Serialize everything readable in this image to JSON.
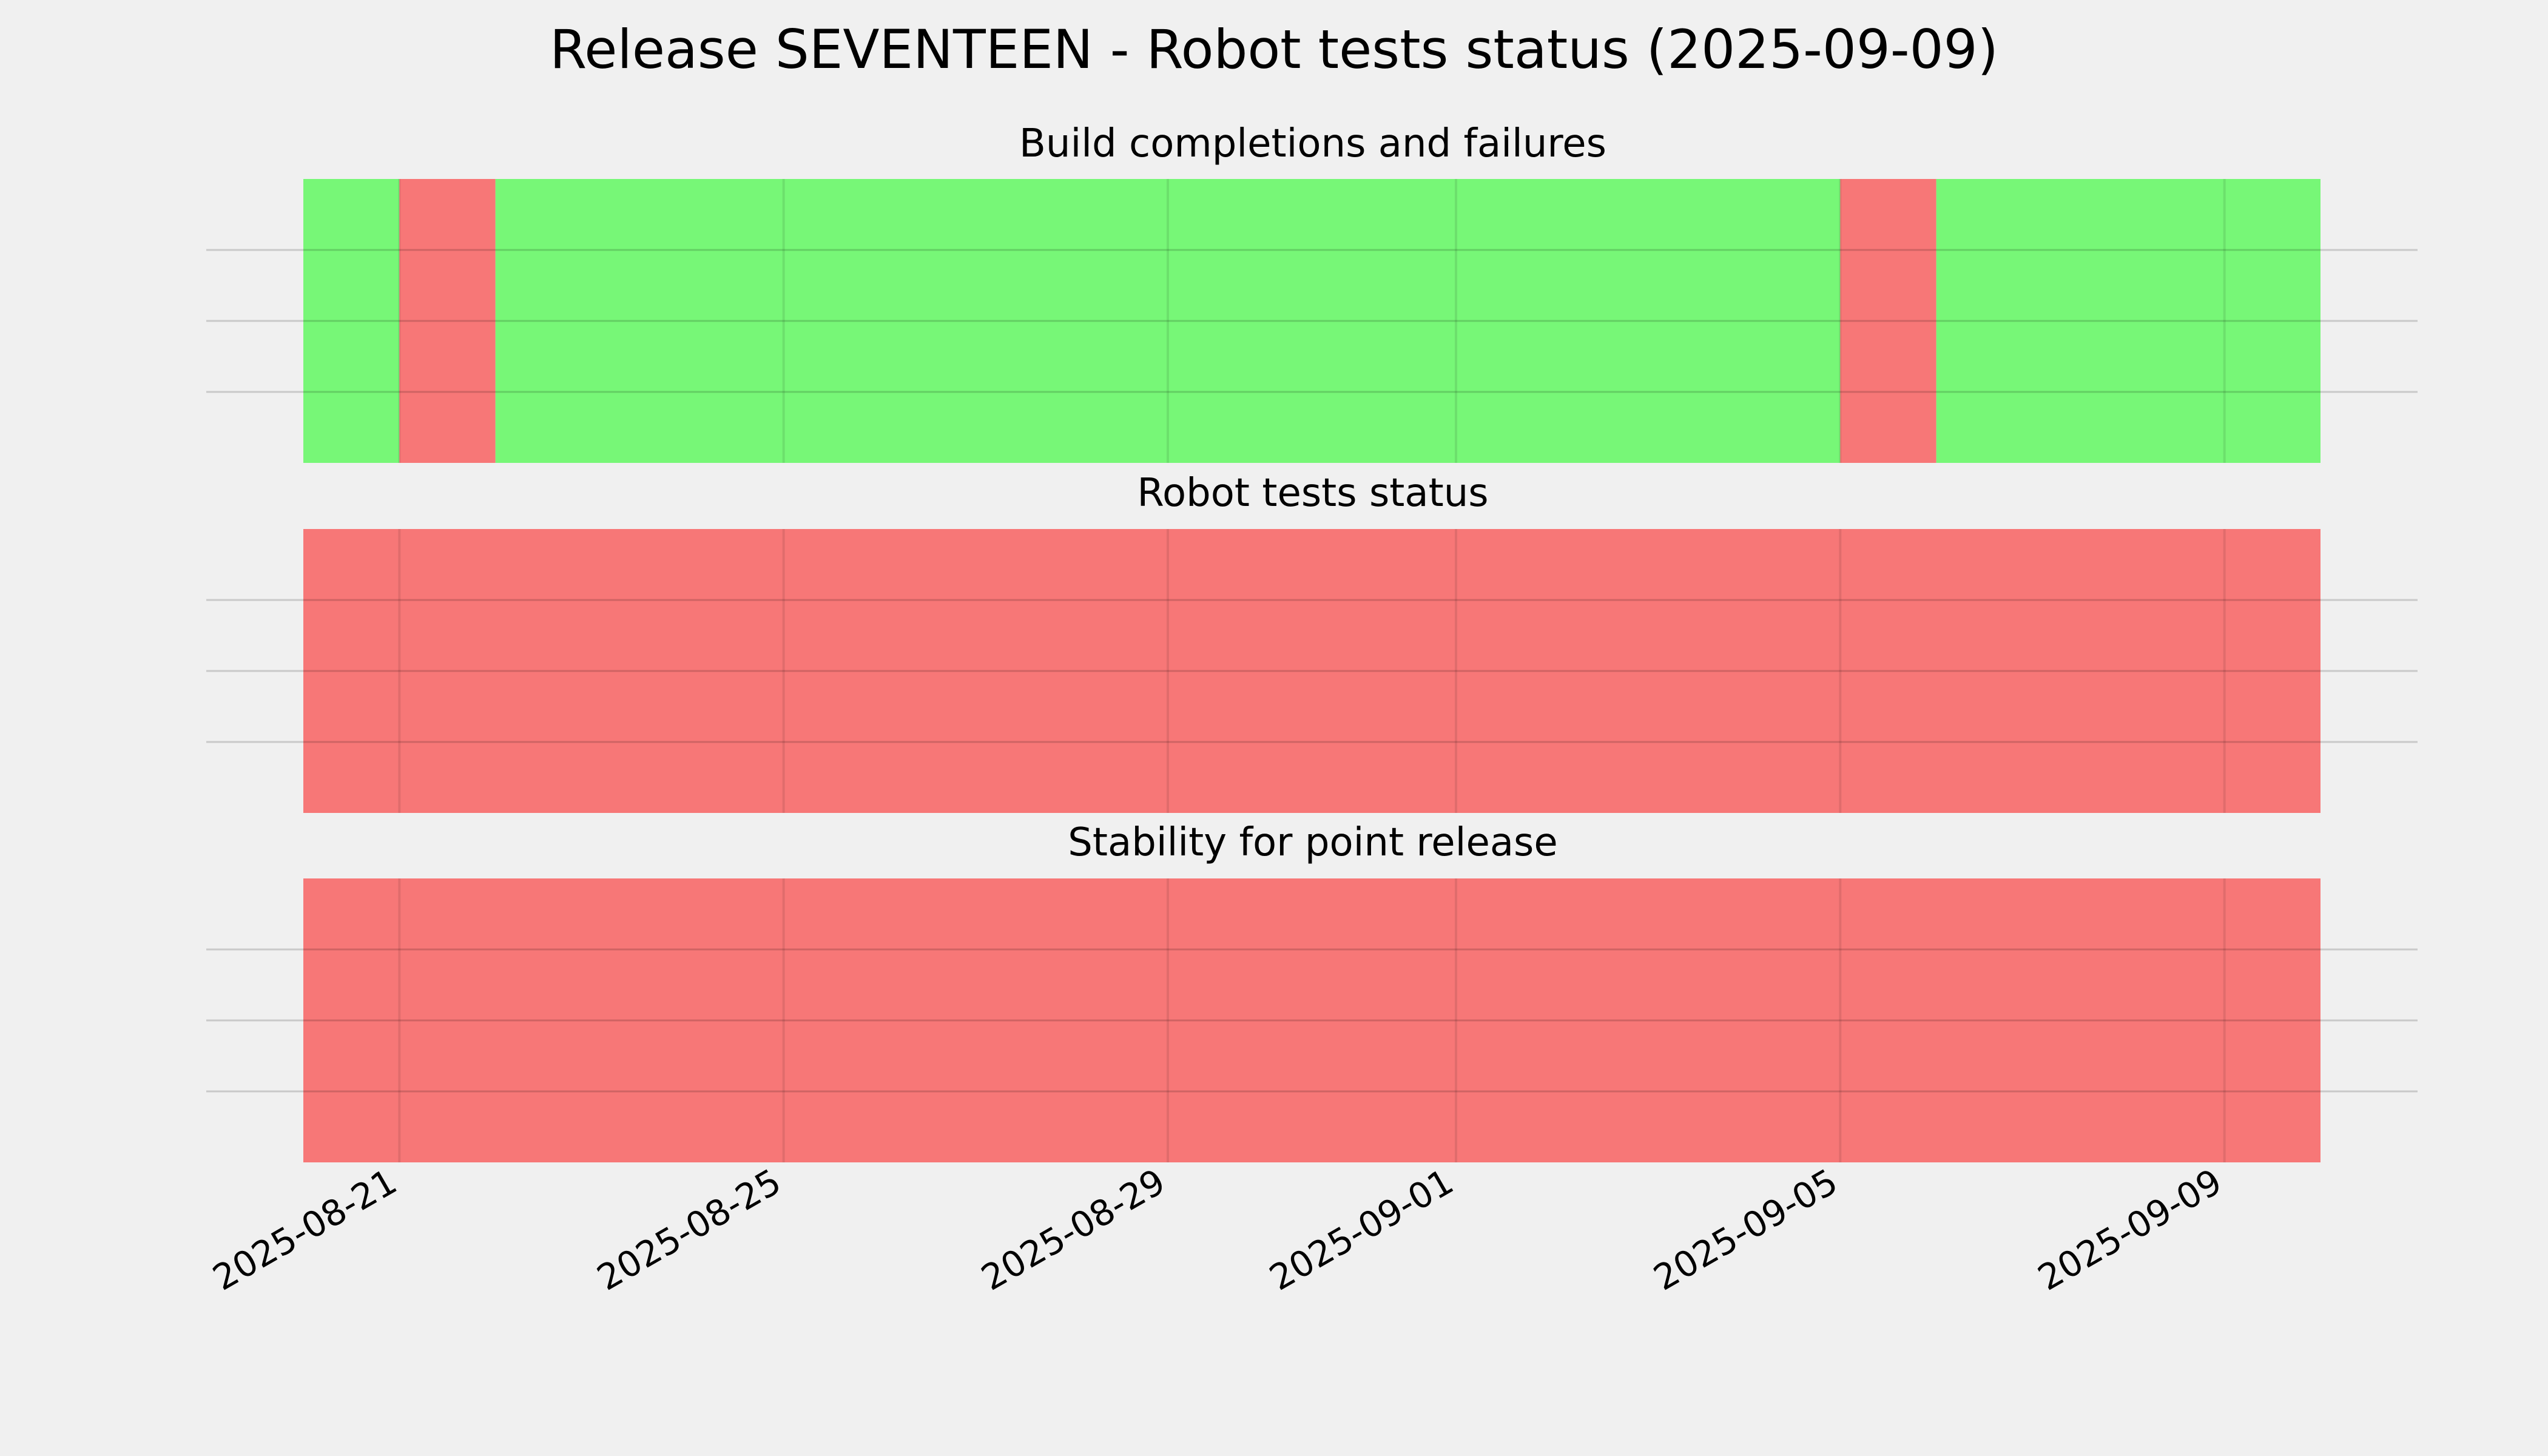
{
  "chart_data": {
    "type": "timeline",
    "title": "Release SEVENTEEN - Robot tests status (2025-09-09)",
    "x_range": [
      "2025-08-20",
      "2025-09-10"
    ],
    "x_ticks": [
      "2025-08-21",
      "2025-08-25",
      "2025-08-29",
      "2025-09-01",
      "2025-09-05",
      "2025-09-09"
    ],
    "grid": true,
    "colors": {
      "pass": "#77f777",
      "fail": "#f77777",
      "background": "#f0f0f0"
    },
    "panels": [
      {
        "title": "Build completions and failures",
        "segments": [
          {
            "start": "2025-08-20",
            "end": "2025-08-21",
            "status": "pass"
          },
          {
            "start": "2025-08-21",
            "end": "2025-08-22",
            "status": "fail"
          },
          {
            "start": "2025-08-22",
            "end": "2025-09-05",
            "status": "pass"
          },
          {
            "start": "2025-09-05",
            "end": "2025-09-06",
            "status": "fail"
          },
          {
            "start": "2025-09-06",
            "end": "2025-09-10",
            "status": "pass"
          }
        ]
      },
      {
        "title": "Robot tests status",
        "segments": [
          {
            "start": "2025-08-20",
            "end": "2025-09-10",
            "status": "fail"
          }
        ]
      },
      {
        "title": "Stability for point release",
        "segments": [
          {
            "start": "2025-08-20",
            "end": "2025-09-10",
            "status": "fail"
          }
        ]
      }
    ]
  }
}
